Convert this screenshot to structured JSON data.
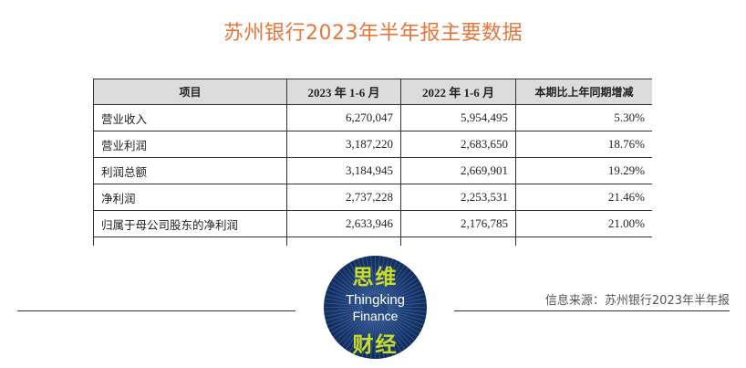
{
  "title": "苏州银行2023年半年报主要数据",
  "table": {
    "headers": [
      "项目",
      "2023 年 1-6 月",
      "2022 年 1-6 月",
      "本期比上年同期增减"
    ],
    "rows": [
      [
        "营业收入",
        "6,270,047",
        "5,954,495",
        "5.30%"
      ],
      [
        "营业利润",
        "3,187,220",
        "2,683,650",
        "18.76%"
      ],
      [
        "利润总额",
        "3,184,945",
        "2,669,901",
        "19.29%"
      ],
      [
        "净利润",
        "2,737,228",
        "2,253,531",
        "21.46%"
      ],
      [
        "归属于母公司股东的净利润",
        "2,633,946",
        "2,176,785",
        "21.00%"
      ]
    ]
  },
  "logo": {
    "cn_top": "思维",
    "en_line1": "Thingking",
    "en_line2": "Finance",
    "cn_bottom": "财经"
  },
  "source": "信息来源：苏州银行2023年半年报",
  "colors": {
    "title": "#e8763a",
    "header_bg": "#dcdcdc",
    "logo_text": "#c9dc2a",
    "logo_bg": "#1a3b72"
  }
}
